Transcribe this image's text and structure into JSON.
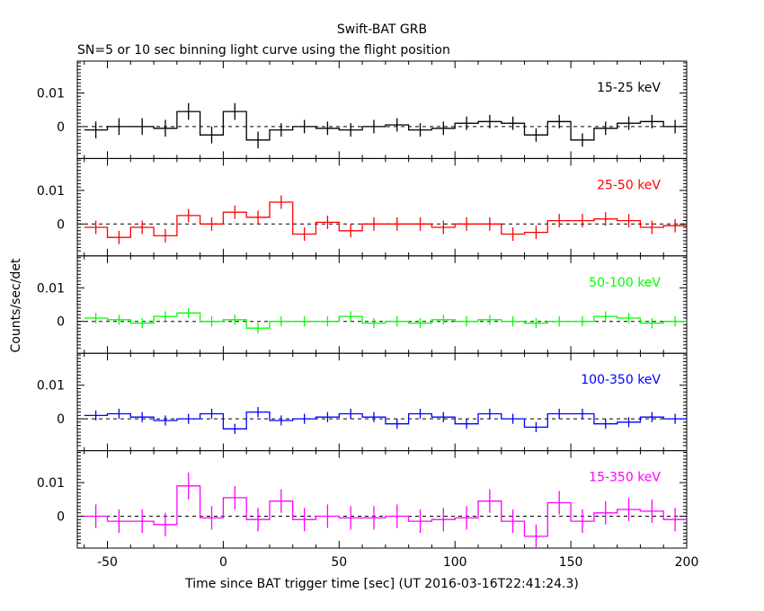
{
  "title": "Swift-BAT GRB",
  "subtitle": "SN=5 or 10 sec binning light curve using the flight position",
  "xlabel": "Time since BAT trigger time [sec] (UT 2016-03-16T22:41:24.3)",
  "ylabel": "Counts/sec/det",
  "colors": {
    "axis": "#000000",
    "background": "#ffffff"
  },
  "chart_data": {
    "type": "line",
    "style": "step with error bars",
    "x_bin_width": 10,
    "xlim": [
      -63,
      200
    ],
    "x_ticks": [
      -50,
      0,
      50,
      100,
      150,
      200
    ],
    "ylim": [
      -0.0095,
      0.0195
    ],
    "y_tick_labels": [
      {
        "value": 0,
        "label": "0"
      },
      {
        "value": 0.01,
        "label": "0.01"
      }
    ],
    "zero_line": "dashed",
    "x": [
      -55,
      -45,
      -35,
      -25,
      -15,
      -5,
      5,
      15,
      25,
      35,
      45,
      55,
      65,
      75,
      85,
      95,
      105,
      115,
      125,
      135,
      145,
      155,
      165,
      175,
      185,
      195
    ],
    "series": [
      {
        "name": "15-25 keV",
        "color": "#000000",
        "values": [
          -0.001,
          0.0,
          0.0,
          -0.0005,
          0.0045,
          -0.0025,
          0.0045,
          -0.004,
          -0.001,
          0.0,
          -0.0005,
          -0.001,
          0.0,
          0.0005,
          -0.001,
          -0.0005,
          0.001,
          0.0015,
          0.001,
          -0.0025,
          0.0015,
          -0.004,
          -0.0005,
          0.001,
          0.0015,
          0.0
        ],
        "errors": [
          0.0025,
          0.0025,
          0.0025,
          0.0025,
          0.0025,
          0.0025,
          0.0025,
          0.0025,
          0.002,
          0.002,
          0.002,
          0.002,
          0.002,
          0.002,
          0.002,
          0.002,
          0.002,
          0.002,
          0.002,
          0.002,
          0.002,
          0.002,
          0.002,
          0.002,
          0.002,
          0.002
        ]
      },
      {
        "name": "25-50 keV",
        "color": "#ff0000",
        "values": [
          -0.001,
          -0.004,
          -0.001,
          -0.0035,
          0.0025,
          0.0,
          0.0035,
          0.002,
          0.0065,
          -0.003,
          0.0005,
          -0.002,
          0.0,
          0.0,
          0.0,
          -0.001,
          0.0,
          0.0,
          -0.003,
          -0.0025,
          0.001,
          0.001,
          0.0015,
          0.001,
          -0.001,
          -0.0005
        ],
        "errors": [
          0.002,
          0.002,
          0.002,
          0.002,
          0.002,
          0.002,
          0.002,
          0.002,
          0.002,
          0.002,
          0.002,
          0.002,
          0.002,
          0.002,
          0.002,
          0.002,
          0.002,
          0.002,
          0.002,
          0.002,
          0.002,
          0.002,
          0.002,
          0.002,
          0.002,
          0.002
        ]
      },
      {
        "name": "50-100 keV",
        "color": "#00ff00",
        "values": [
          0.001,
          0.0005,
          -0.0005,
          0.0015,
          0.0025,
          0.0,
          0.0005,
          -0.002,
          0.0,
          0.0,
          0.0,
          0.0015,
          -0.0005,
          0.0,
          -0.0005,
          0.0005,
          0.0,
          0.0005,
          0.0,
          -0.0005,
          0.0,
          0.0,
          0.0015,
          0.001,
          -0.0005,
          0.0
        ],
        "errors": [
          0.0015,
          0.0015,
          0.0015,
          0.0015,
          0.0015,
          0.0015,
          0.0015,
          0.0015,
          0.0015,
          0.0015,
          0.0015,
          0.0015,
          0.0015,
          0.0015,
          0.0015,
          0.0015,
          0.0015,
          0.0015,
          0.0015,
          0.0015,
          0.0015,
          0.0015,
          0.0015,
          0.0015,
          0.0015,
          0.0015
        ]
      },
      {
        "name": "100-350 keV",
        "color": "#0000ff",
        "values": [
          0.001,
          0.0015,
          0.0005,
          -0.0005,
          0.0,
          0.0015,
          -0.003,
          0.002,
          -0.0005,
          0.0,
          0.0005,
          0.0015,
          0.0005,
          -0.0015,
          0.0015,
          0.0005,
          -0.0015,
          0.0015,
          0.0,
          -0.0025,
          0.0015,
          0.0015,
          -0.0015,
          -0.001,
          0.0005,
          0.0
        ],
        "errors": [
          0.0015,
          0.0015,
          0.0015,
          0.0015,
          0.0015,
          0.0015,
          0.0015,
          0.0015,
          0.0015,
          0.0015,
          0.0015,
          0.0015,
          0.0015,
          0.0015,
          0.0015,
          0.0015,
          0.0015,
          0.0015,
          0.0015,
          0.0015,
          0.0015,
          0.0015,
          0.0015,
          0.0015,
          0.0015,
          0.0015
        ]
      },
      {
        "name": "15-350 keV",
        "color": "#ff00ff",
        "values": [
          0.0,
          -0.0015,
          -0.0015,
          -0.0025,
          0.009,
          -0.0005,
          0.0055,
          -0.001,
          0.0045,
          -0.001,
          0.0,
          -0.0005,
          -0.0005,
          0.0,
          -0.0015,
          -0.001,
          -0.0005,
          0.0045,
          -0.0015,
          -0.006,
          0.004,
          -0.0015,
          0.001,
          0.002,
          0.0015,
          -0.001
        ],
        "errors": [
          0.0035,
          0.0035,
          0.0035,
          0.0035,
          0.004,
          0.0035,
          0.0035,
          0.0035,
          0.0035,
          0.0035,
          0.0035,
          0.0035,
          0.0035,
          0.0035,
          0.0035,
          0.0035,
          0.0035,
          0.0035,
          0.0035,
          0.0035,
          0.0035,
          0.0035,
          0.0035,
          0.0035,
          0.0035,
          0.0035
        ]
      }
    ]
  }
}
